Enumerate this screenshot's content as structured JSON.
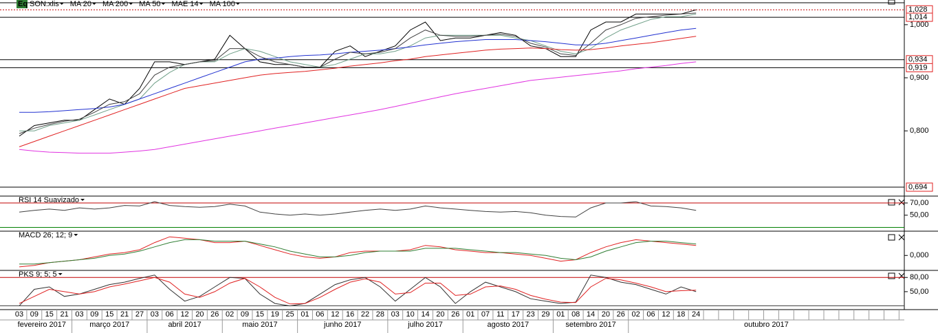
{
  "chart_data": [
    {
      "type": "line",
      "icon": "Eq",
      "categories": [
        "03",
        "09",
        "15",
        "21",
        "03",
        "09",
        "15",
        "21",
        "27",
        "03",
        "06",
        "12",
        "20",
        "26",
        "02",
        "09",
        "15",
        "19",
        "25",
        "01",
        "06",
        "12",
        "16",
        "22",
        "28",
        "03",
        "10",
        "14",
        "20",
        "26",
        "01",
        "07",
        "11",
        "17",
        "23",
        "29",
        "01",
        "08",
        "14",
        "20",
        "26",
        "02",
        "06",
        "12",
        "18",
        "24"
      ],
      "months": [
        "fevereiro 2017",
        "março 2017",
        "abril 2017",
        "maio 2017",
        "junho 2017",
        "julho 2017",
        "agosto 2017",
        "setembro 2017",
        "outubro 2017"
      ],
      "series": [
        {
          "name": "SON.xlis",
          "color": "#000000",
          "values": [
            0.79,
            0.81,
            0.815,
            0.82,
            0.82,
            0.84,
            0.86,
            0.85,
            0.88,
            0.93,
            0.93,
            0.925,
            0.93,
            0.935,
            0.98,
            0.955,
            0.93,
            0.925,
            0.925,
            0.92,
            0.92,
            0.95,
            0.96,
            0.94,
            0.95,
            0.96,
            0.99,
            1.005,
            0.97,
            0.975,
            0.975,
            0.98,
            0.985,
            0.98,
            0.96,
            0.955,
            0.94,
            0.94,
            0.99,
            1.005,
            1.005,
            1.02,
            1.02,
            1.02,
            1.02,
            1.028
          ]
        },
        {
          "name": "MA 20",
          "color": "#6f9f88",
          "values": [
            0.8,
            0.8,
            0.81,
            0.815,
            0.82,
            0.83,
            0.84,
            0.85,
            0.86,
            0.89,
            0.91,
            0.925,
            0.93,
            0.93,
            0.945,
            0.955,
            0.95,
            0.94,
            0.93,
            0.925,
            0.92,
            0.925,
            0.935,
            0.945,
            0.945,
            0.95,
            0.96,
            0.975,
            0.98,
            0.98,
            0.98,
            0.98,
            0.98,
            0.975,
            0.97,
            0.96,
            0.95,
            0.945,
            0.955,
            0.975,
            0.99,
            1.0,
            1.01,
            1.015,
            1.015,
            1.02
          ]
        },
        {
          "name": "MA 200",
          "color": "#e030e0",
          "values": [
            0.765,
            0.762,
            0.76,
            0.759,
            0.758,
            0.758,
            0.758,
            0.76,
            0.762,
            0.765,
            0.77,
            0.775,
            0.78,
            0.785,
            0.79,
            0.795,
            0.8,
            0.805,
            0.81,
            0.815,
            0.82,
            0.825,
            0.83,
            0.835,
            0.84,
            0.846,
            0.852,
            0.858,
            0.864,
            0.87,
            0.875,
            0.88,
            0.885,
            0.89,
            0.895,
            0.898,
            0.901,
            0.904,
            0.907,
            0.91,
            0.913,
            0.917,
            0.92,
            0.923,
            0.927,
            0.93
          ]
        },
        {
          "name": "MA 50",
          "color": "#2030d0",
          "values": [
            0.835,
            0.835,
            0.836,
            0.838,
            0.84,
            0.842,
            0.845,
            0.85,
            0.86,
            0.87,
            0.88,
            0.89,
            0.9,
            0.91,
            0.92,
            0.93,
            0.935,
            0.937,
            0.94,
            0.942,
            0.943,
            0.945,
            0.948,
            0.95,
            0.952,
            0.955,
            0.958,
            0.962,
            0.965,
            0.968,
            0.97,
            0.972,
            0.972,
            0.972,
            0.97,
            0.968,
            0.965,
            0.962,
            0.962,
            0.965,
            0.97,
            0.975,
            0.98,
            0.985,
            0.99,
            0.993
          ]
        },
        {
          "name": "MAE 14",
          "color": "#404040",
          "values": [
            0.795,
            0.805,
            0.812,
            0.818,
            0.822,
            0.835,
            0.85,
            0.855,
            0.87,
            0.905,
            0.92,
            0.925,
            0.93,
            0.932,
            0.955,
            0.955,
            0.94,
            0.93,
            0.925,
            0.92,
            0.92,
            0.935,
            0.948,
            0.945,
            0.948,
            0.955,
            0.975,
            0.99,
            0.98,
            0.978,
            0.978,
            0.98,
            0.982,
            0.978,
            0.965,
            0.958,
            0.945,
            0.942,
            0.965,
            0.99,
            1.0,
            1.012,
            1.015,
            1.018,
            1.02,
            1.022
          ]
        },
        {
          "name": "MA 100",
          "color": "#e02020",
          "values": [
            0.77,
            0.78,
            0.79,
            0.8,
            0.81,
            0.82,
            0.83,
            0.84,
            0.85,
            0.86,
            0.87,
            0.88,
            0.885,
            0.89,
            0.895,
            0.9,
            0.905,
            0.908,
            0.91,
            0.912,
            0.915,
            0.918,
            0.922,
            0.925,
            0.928,
            0.932,
            0.935,
            0.94,
            0.943,
            0.946,
            0.949,
            0.952,
            0.954,
            0.955,
            0.956,
            0.955,
            0.953,
            0.952,
            0.953,
            0.956,
            0.96,
            0.963,
            0.966,
            0.97,
            0.974,
            0.978
          ]
        }
      ],
      "ylim": [
        0.694,
        1.04
      ],
      "yticks": [
        {
          "value": 0.8,
          "label": "0,800"
        },
        {
          "value": 0.9,
          "label": "0,900"
        },
        {
          "value": 1.0,
          "label": "1,000"
        }
      ],
      "levels": [
        {
          "value": 1.028,
          "label": "1,028",
          "color": "#c00000"
        },
        {
          "value": 1.014,
          "label": "1,014",
          "color": "#000000"
        },
        {
          "value": 0.934,
          "label": "0,934",
          "color": "#000000"
        },
        {
          "value": 0.919,
          "label": "0,919",
          "color": "#000000"
        },
        {
          "value": 0.694,
          "label": "0,694",
          "color": "#000000"
        }
      ]
    },
    {
      "type": "line",
      "title": "RSI 14 Suavizado",
      "series": [
        {
          "color": "#404040",
          "values": [
            55,
            58,
            60,
            58,
            62,
            60,
            62,
            66,
            65,
            72,
            66,
            64,
            63,
            64,
            68,
            65,
            55,
            52,
            50,
            52,
            50,
            52,
            55,
            58,
            60,
            58,
            60,
            65,
            62,
            60,
            58,
            56,
            55,
            56,
            54,
            50,
            48,
            47,
            62,
            70,
            70,
            72,
            65,
            64,
            62,
            58
          ]
        }
      ],
      "ylim": [
        25,
        79
      ],
      "yticks": [
        {
          "value": 70,
          "label": "70,00"
        },
        {
          "value": 50,
          "label": "50,00"
        }
      ],
      "hlines": [
        {
          "value": 70,
          "color": "#c00000"
        },
        {
          "value": 30,
          "color": "#008000"
        }
      ]
    },
    {
      "type": "line",
      "title": "MACD 26; 12; 9",
      "series": [
        {
          "color": "#e02020",
          "values": [
            -0.008,
            -0.007,
            -0.005,
            -0.004,
            -0.003,
            -0.001,
            0.001,
            0.002,
            0.004,
            0.009,
            0.013,
            0.012,
            0.011,
            0.009,
            0.009,
            0.01,
            0.007,
            0.004,
            0.001,
            -0.001,
            -0.002,
            -0.001,
            0.002,
            0.003,
            0.003,
            0.003,
            0.004,
            0.007,
            0.006,
            0.004,
            0.003,
            0.002,
            0.002,
            0.001,
            0,
            -0.002,
            -0.004,
            -0.003,
            0.002,
            0.006,
            0.009,
            0.011,
            0.01,
            0.009,
            0.008,
            0.007
          ]
        },
        {
          "color": "#2e7d32",
          "values": [
            -0.006,
            -0.006,
            -0.005,
            -0.004,
            -0.003,
            -0.002,
            0,
            0.001,
            0.003,
            0.006,
            0.009,
            0.011,
            0.011,
            0.01,
            0.01,
            0.01,
            0.008,
            0.006,
            0.003,
            0.001,
            -0.001,
            -0.001,
            0,
            0.002,
            0.003,
            0.003,
            0.003,
            0.005,
            0.005,
            0.005,
            0.004,
            0.003,
            0.002,
            0.002,
            0.001,
            0,
            -0.002,
            -0.003,
            -0.001,
            0.003,
            0.006,
            0.009,
            0.01,
            0.01,
            0.009,
            0.008
          ]
        }
      ],
      "ylim": [
        -0.009,
        0.016
      ],
      "yticks": [
        {
          "value": 0,
          "label": "0,000"
        }
      ]
    },
    {
      "type": "line",
      "title": "PKS 9; 5; 5",
      "series": [
        {
          "color": "#303030",
          "values": [
            20,
            55,
            60,
            40,
            45,
            55,
            65,
            70,
            78,
            85,
            55,
            30,
            40,
            60,
            80,
            78,
            45,
            25,
            20,
            25,
            45,
            65,
            75,
            80,
            60,
            30,
            55,
            80,
            60,
            25,
            50,
            70,
            60,
            50,
            35,
            30,
            25,
            28,
            85,
            80,
            70,
            65,
            55,
            45,
            60,
            50
          ]
        },
        {
          "color": "#e02020",
          "values": [
            25,
            40,
            55,
            50,
            45,
            50,
            60,
            66,
            73,
            80,
            70,
            45,
            38,
            50,
            68,
            78,
            60,
            38,
            24,
            25,
            38,
            55,
            70,
            77,
            70,
            45,
            48,
            68,
            68,
            42,
            45,
            60,
            62,
            55,
            42,
            34,
            28,
            27,
            60,
            78,
            75,
            68,
            60,
            50,
            52,
            53
          ]
        }
      ],
      "ylim": [
        15,
        92
      ],
      "yticks": [
        {
          "value": 80,
          "label": "80,00"
        },
        {
          "value": 50,
          "label": "50,00"
        }
      ],
      "hlines": [
        {
          "value": 80,
          "color": "#c00000"
        },
        {
          "value": 20,
          "color": "#404040"
        }
      ]
    }
  ]
}
